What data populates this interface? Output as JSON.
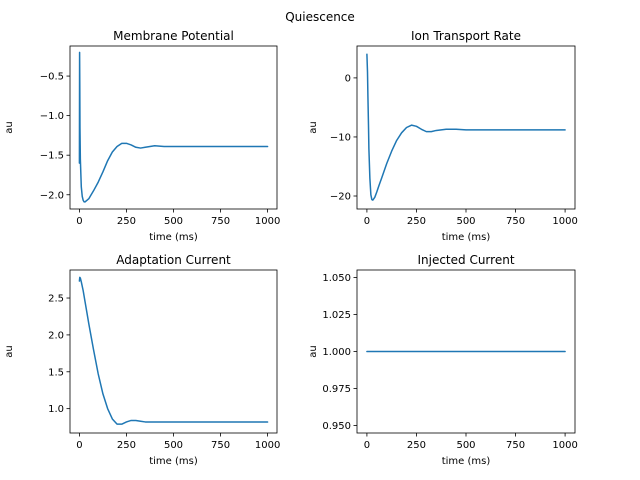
{
  "figure": {
    "suptitle": "Quiescence",
    "line_color": "#1f77b4"
  },
  "chart_data": [
    {
      "type": "line",
      "title": "Membrane Potential",
      "xlabel": "time (ms)",
      "ylabel": "au",
      "xlim": [
        -50,
        1050
      ],
      "ylim": [
        -2.18,
        -0.12
      ],
      "xticks": [
        0,
        250,
        500,
        750,
        1000
      ],
      "yticks": [
        -0.5,
        -1.0,
        -1.5,
        -2.0
      ],
      "ytick_labels": [
        "−0.5",
        "−1.0",
        "−1.5",
        "−2.0"
      ],
      "grid": false,
      "series": [
        {
          "x": [
            0,
            1,
            2,
            3,
            5,
            10,
            15,
            20,
            25,
            30,
            40,
            50,
            60,
            75,
            100,
            125,
            150,
            175,
            200,
            225,
            250,
            275,
            300,
            325,
            350,
            400,
            450,
            500,
            600,
            700,
            800,
            900,
            1000
          ],
          "y": [
            -1.6,
            -0.2,
            -0.6,
            -1.15,
            -1.55,
            -1.9,
            -2.02,
            -2.07,
            -2.09,
            -2.09,
            -2.07,
            -2.05,
            -2.01,
            -1.95,
            -1.84,
            -1.71,
            -1.57,
            -1.46,
            -1.39,
            -1.35,
            -1.35,
            -1.37,
            -1.4,
            -1.41,
            -1.4,
            -1.38,
            -1.39,
            -1.39,
            -1.39,
            -1.39,
            -1.39,
            -1.39,
            -1.39
          ]
        }
      ]
    },
    {
      "type": "line",
      "title": "Ion Transport Rate",
      "xlabel": "time (ms)",
      "ylabel": "au",
      "xlim": [
        -50,
        1050
      ],
      "ylim": [
        -22.2,
        5.4
      ],
      "xticks": [
        0,
        250,
        500,
        750,
        1000
      ],
      "yticks": [
        0,
        -10,
        -20
      ],
      "ytick_labels": [
        "0",
        "−10",
        "−20"
      ],
      "grid": false,
      "series": [
        {
          "x": [
            0,
            3,
            5,
            8,
            10,
            15,
            20,
            25,
            30,
            40,
            50,
            60,
            75,
            100,
            125,
            150,
            175,
            200,
            225,
            250,
            275,
            300,
            325,
            350,
            400,
            450,
            500,
            600,
            700,
            800,
            900,
            1000
          ],
          "y": [
            4,
            1,
            -3,
            -8,
            -12,
            -17,
            -19.8,
            -20.6,
            -20.7,
            -20.2,
            -19.3,
            -18.3,
            -16.9,
            -14.5,
            -12.4,
            -10.6,
            -9.3,
            -8.4,
            -8,
            -8.2,
            -8.7,
            -9.1,
            -9.1,
            -8.9,
            -8.7,
            -8.7,
            -8.8,
            -8.8,
            -8.8,
            -8.8,
            -8.8,
            -8.8
          ]
        }
      ]
    },
    {
      "type": "line",
      "title": "Adaptation Current",
      "xlabel": "time (ms)",
      "ylabel": "au",
      "xlim": [
        -50,
        1050
      ],
      "ylim": [
        0.67,
        2.88
      ],
      "xticks": [
        0,
        250,
        500,
        750,
        1000
      ],
      "yticks": [
        1.0,
        1.5,
        2.0,
        2.5
      ],
      "ytick_labels": [
        "1.0",
        "1.5",
        "2.0",
        "2.5"
      ],
      "grid": false,
      "series": [
        {
          "x": [
            0,
            2,
            5,
            10,
            20,
            30,
            40,
            50,
            75,
            100,
            125,
            150,
            175,
            200,
            225,
            250,
            275,
            300,
            325,
            350,
            400,
            450,
            500,
            600,
            700,
            800,
            900,
            1000
          ],
          "y": [
            2.73,
            2.78,
            2.77,
            2.72,
            2.6,
            2.45,
            2.3,
            2.15,
            1.8,
            1.47,
            1.2,
            1.0,
            0.86,
            0.79,
            0.79,
            0.82,
            0.84,
            0.84,
            0.83,
            0.82,
            0.82,
            0.82,
            0.82,
            0.82,
            0.82,
            0.82,
            0.82,
            0.82
          ]
        }
      ]
    },
    {
      "type": "line",
      "title": "Injected Current",
      "xlabel": "time (ms)",
      "ylabel": "au",
      "xlim": [
        -50,
        1050
      ],
      "ylim": [
        0.945,
        1.055
      ],
      "xticks": [
        0,
        250,
        500,
        750,
        1000
      ],
      "yticks": [
        0.95,
        0.975,
        1.0,
        1.025,
        1.05
      ],
      "ytick_labels": [
        "0.950",
        "0.975",
        "1.000",
        "1.025",
        "1.050"
      ],
      "grid": false,
      "series": [
        {
          "x": [
            0,
            1000
          ],
          "y": [
            1.0,
            1.0
          ]
        }
      ]
    }
  ]
}
